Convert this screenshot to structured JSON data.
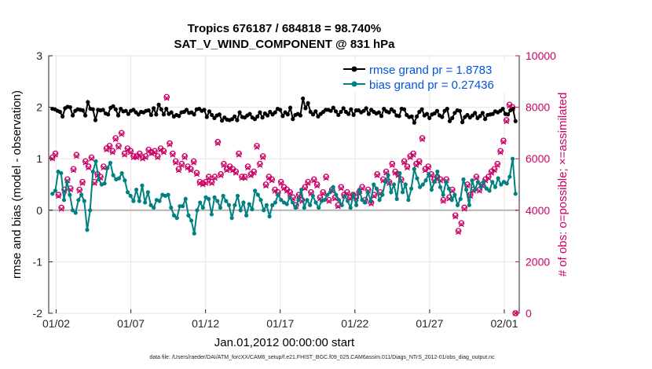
{
  "chart_data": {
    "type": "line",
    "title_line1": "Tropics 676187 / 684818 = 98.740%",
    "title_line2": "SAT_V_WIND_COMPONENT @ 831 hPa",
    "xlabel": "Jan.01,2012 00:00:00 start",
    "ylabel_left": "rmse and bias (model - observation)",
    "ylabel_right": "# of obs: o=possible; ×=assimilated",
    "xlim": [
      0,
      31.5
    ],
    "ylim_left": [
      -2,
      3
    ],
    "ylim_right": [
      0,
      10000
    ],
    "x_ticks": [
      {
        "x": 0.5,
        "label": "01/02"
      },
      {
        "x": 5.5,
        "label": "01/07"
      },
      {
        "x": 10.5,
        "label": "01/12"
      },
      {
        "x": 15.5,
        "label": "01/17"
      },
      {
        "x": 20.5,
        "label": "01/22"
      },
      {
        "x": 25.5,
        "label": "01/27"
      },
      {
        "x": 30.5,
        "label": "02/01"
      }
    ],
    "y_ticks_left": [
      "-2",
      "-1",
      "0",
      "1",
      "2",
      "3"
    ],
    "y_ticks_right": [
      "0",
      "2000",
      "4000",
      "6000",
      "8000",
      "10000"
    ],
    "footer": "data file: /Users/raeder/DAI/ATM_forcXX/CAM6_setup/f.e21.FHIST_BGC.f09_025.CAM6assim.011/Diags_NTrS_2012-01/obs_diag_output.nc",
    "series": [
      {
        "name": "rmse grand pr = 1.8783",
        "axis": "left",
        "color": "#000000",
        "values": [
          1.97,
          1.96,
          1.93,
          1.91,
          1.82,
          1.98,
          2.01,
          2.0,
          1.84,
          1.93,
          1.96,
          1.95,
          1.94,
          1.84,
          2.1,
          1.97,
          1.96,
          1.75,
          1.95,
          1.94,
          1.95,
          1.88,
          1.86,
          1.99,
          2.02,
          1.96,
          1.84,
          1.97,
          1.92,
          1.93,
          1.87,
          1.93,
          1.95,
          1.9,
          1.86,
          1.91,
          1.9,
          1.93,
          1.94,
          1.85,
          1.98,
          1.86,
          2.05,
          1.96,
          1.86,
          1.97,
          1.87,
          1.9,
          1.82,
          1.85,
          1.83,
          1.9,
          1.91,
          1.95,
          1.89,
          1.9,
          1.86,
          1.96,
          1.97,
          1.93,
          1.95,
          1.81,
          1.92,
          1.85,
          1.79,
          1.84,
          1.86,
          1.74,
          1.8,
          1.76,
          1.75,
          1.77,
          1.82,
          1.75,
          1.9,
          1.81,
          1.8,
          1.84,
          1.87,
          1.8,
          1.77,
          1.82,
          1.9,
          1.8,
          1.88,
          1.84,
          1.91,
          1.86,
          1.9,
          1.97,
          1.95,
          1.83,
          1.9,
          1.86,
          1.99,
          1.77,
          1.85,
          1.87,
          1.84,
          2.17,
          1.98,
          2.08,
          1.91,
          1.86,
          1.92,
          1.82,
          1.87,
          1.91,
          1.95,
          1.95,
          1.93,
          1.99,
          1.92,
          1.85,
          1.91,
          1.98,
          1.91,
          1.87,
          1.96,
          1.85,
          1.94,
          1.94,
          1.9,
          1.93,
          1.98,
          1.87,
          1.95,
          1.91,
          1.88,
          1.9,
          1.83,
          1.97,
          1.92,
          1.9,
          1.96,
          1.92,
          1.84,
          1.83,
          1.97,
          1.96,
          1.85,
          1.81,
          1.82,
          1.7,
          1.82,
          1.91,
          1.96,
          1.84,
          1.87,
          1.79,
          1.86,
          1.88,
          1.93,
          1.84,
          1.81,
          1.93,
          1.97,
          1.73,
          1.79,
          1.89,
          1.94,
          1.93,
          1.71,
          1.81,
          1.85,
          1.8,
          1.84,
          1.89,
          1.79,
          1.83,
          1.89,
          1.77,
          1.85,
          1.86,
          1.87,
          1.92,
          1.9,
          1.93,
          1.97,
          1.87,
          1.86,
          1.94,
          1.97,
          1.73
        ]
      },
      {
        "name": "bias grand pr = 0.27436",
        "axis": "left",
        "color": "#008080",
        "values": [
          0.32,
          0.38,
          0.75,
          0.72,
          0.2,
          0.55,
          0.3,
          0.0,
          -0.05,
          0.2,
          0.3,
          0.18,
          -0.38,
          0.0,
          0.75,
          0.95,
          0.6,
          0.5,
          0.52,
          0.82,
          0.92,
          0.68,
          0.6,
          0.62,
          0.72,
          0.58,
          0.35,
          0.28,
          0.18,
          0.4,
          0.18,
          0.48,
          0.15,
          0.35,
          0.1,
          0.05,
          0.2,
          0.18,
          0.3,
          0.28,
          0.3,
          0.05,
          -0.1,
          -0.15,
          0.08,
          0.08,
          0.22,
          -0.1,
          -0.2,
          -0.45,
          0.0,
          0.15,
          0.05,
          0.25,
          0.22,
          -0.08,
          0.25,
          0.18,
          0.05,
          0.28,
          0.18,
          0.1,
          -0.15,
          0.1,
          0.28,
          0.0,
          0.15,
          -0.1,
          0.12,
          0.02,
          0.38,
          0.3,
          0.2,
          0.0,
          0.1,
          -0.12,
          0.1,
          0.15,
          0.3,
          0.2,
          0.15,
          0.12,
          0.25,
          0.15,
          0.05,
          0.2,
          0.4,
          0.05,
          0.2,
          0.1,
          0.28,
          0.15,
          0.05,
          0.18,
          0.2,
          0.3,
          0.35,
          0.45,
          0.3,
          0.2,
          0.1,
          0.28,
          0.18,
          0.05,
          0.3,
          0.1,
          0.4,
          0.2,
          0.15,
          0.35,
          0.18,
          0.5,
          0.42,
          0.2,
          0.3,
          0.55,
          0.68,
          0.35,
          0.5,
          0.22,
          0.72,
          0.35,
          0.5,
          0.2,
          0.42,
          0.8,
          0.62,
          0.45,
          0.5,
          0.58,
          0.7,
          0.4,
          0.55,
          0.75,
          0.45,
          0.3,
          0.55,
          0.42,
          0.2,
          0.3,
          0.1,
          0.22,
          0.6,
          0.4,
          0.1,
          0.58,
          0.4,
          0.55,
          0.45,
          0.55,
          0.42,
          0.38,
          0.55,
          0.45,
          0.62,
          0.5,
          0.55,
          0.52,
          0.65,
          1.0,
          0.32
        ]
      },
      {
        "name": "possible",
        "axis": "right",
        "color": "#cc0066",
        "marker": "o",
        "values": [
          6050,
          6200,
          4600,
          4100,
          4800,
          5200,
          4850,
          5600,
          6150,
          4800,
          5100,
          5900,
          5700,
          6050,
          5100,
          5400,
          5300,
          5700,
          6400,
          6500,
          6300,
          6800,
          6500,
          7000,
          6200,
          6400,
          6300,
          6100,
          6100,
          6200,
          6050,
          6100,
          6350,
          6250,
          6300,
          6100,
          6400,
          6300,
          8400,
          6600,
          6200,
          5900,
          5600,
          5800,
          6100,
          5700,
          5600,
          5900,
          5450,
          5100,
          5050,
          5100,
          5300,
          5100,
          5300,
          6650,
          5400,
          5800,
          5600,
          5700,
          5600,
          5500,
          6200,
          5300,
          5300,
          5700,
          5400,
          5500,
          6500,
          5800,
          6100,
          5000,
          5300,
          5200,
          4800,
          4700,
          5100,
          4900,
          4800,
          4700,
          4500,
          4200,
          4600,
          4400,
          4900,
          5100,
          4700,
          5200,
          5000,
          4500,
          4700,
          5300,
          4400,
          4800,
          4500,
          4200,
          4900,
          4600,
          4700,
          4500,
          4600,
          4500,
          4700,
          4900,
          4400,
          4800,
          4300,
          4600,
          5400,
          4700,
          5200,
          5500,
          5100,
          5800,
          5500,
          5400,
          5200,
          5900,
          5700,
          6100,
          6200,
          5800,
          5900,
          6800,
          5600,
          5700,
          5400,
          5200,
          5300,
          5200,
          4400,
          5200,
          4500,
          4800,
          3800,
          3200,
          3500,
          4100,
          5000,
          4600,
          4800,
          5300,
          4800,
          5000,
          5200,
          5300,
          5500,
          5600,
          5800,
          6300,
          6700,
          7500,
          8100,
          8000,
          0
        ]
      },
      {
        "name": "assimilated",
        "axis": "right",
        "color": "#cc0066",
        "marker": "x",
        "values": [
          6000,
          6150,
          4550,
          4050,
          4750,
          5150,
          4800,
          5550,
          6100,
          4750,
          5050,
          5850,
          5650,
          6000,
          5050,
          5350,
          5250,
          5650,
          6350,
          6450,
          6250,
          6750,
          6450,
          6950,
          6150,
          6350,
          6250,
          6050,
          6050,
          6150,
          6000,
          6050,
          6300,
          6200,
          6250,
          6050,
          6350,
          6250,
          8350,
          6550,
          6150,
          5850,
          5550,
          5750,
          6050,
          5650,
          5550,
          5850,
          5400,
          5050,
          5000,
          5050,
          5250,
          5050,
          5250,
          6600,
          5350,
          5750,
          5550,
          5650,
          5550,
          5450,
          6150,
          5250,
          5250,
          5650,
          5350,
          5450,
          6450,
          5750,
          6050,
          4950,
          5250,
          5150,
          4750,
          4650,
          5050,
          4850,
          4750,
          4650,
          4450,
          4150,
          4550,
          4350,
          4850,
          5050,
          4650,
          5150,
          4950,
          4450,
          4650,
          5250,
          4350,
          4750,
          4450,
          4150,
          4850,
          4550,
          4650,
          4450,
          4550,
          4450,
          4650,
          4850,
          4350,
          4750,
          4250,
          4550,
          5350,
          4650,
          5150,
          5450,
          5050,
          5750,
          5450,
          5350,
          5150,
          5850,
          5650,
          6050,
          6150,
          5750,
          5850,
          6750,
          5550,
          5650,
          5350,
          5150,
          5250,
          5150,
          4350,
          5150,
          4450,
          4750,
          3750,
          3150,
          3450,
          4050,
          4950,
          4550,
          4750,
          5250,
          4750,
          4950,
          5150,
          5250,
          5450,
          5550,
          5750,
          6250,
          6650,
          7450,
          8050,
          7950,
          0
        ]
      }
    ],
    "baseline": 0,
    "legend_position": "top-right"
  }
}
